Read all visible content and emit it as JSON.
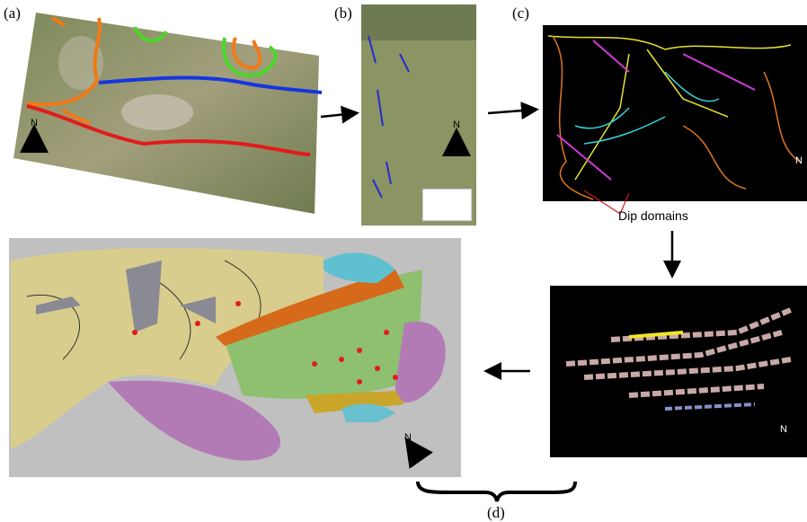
{
  "panels": [
    {
      "label": "(a)",
      "north": "N"
    },
    {
      "label": "(b)",
      "north": "N"
    },
    {
      "label": "(c)",
      "north": "N",
      "annotation": "Dip domains"
    },
    {
      "label": "(d)"
    }
  ],
  "lower_panel": {
    "north": "N"
  },
  "model_panel": {
    "north": "N"
  }
}
